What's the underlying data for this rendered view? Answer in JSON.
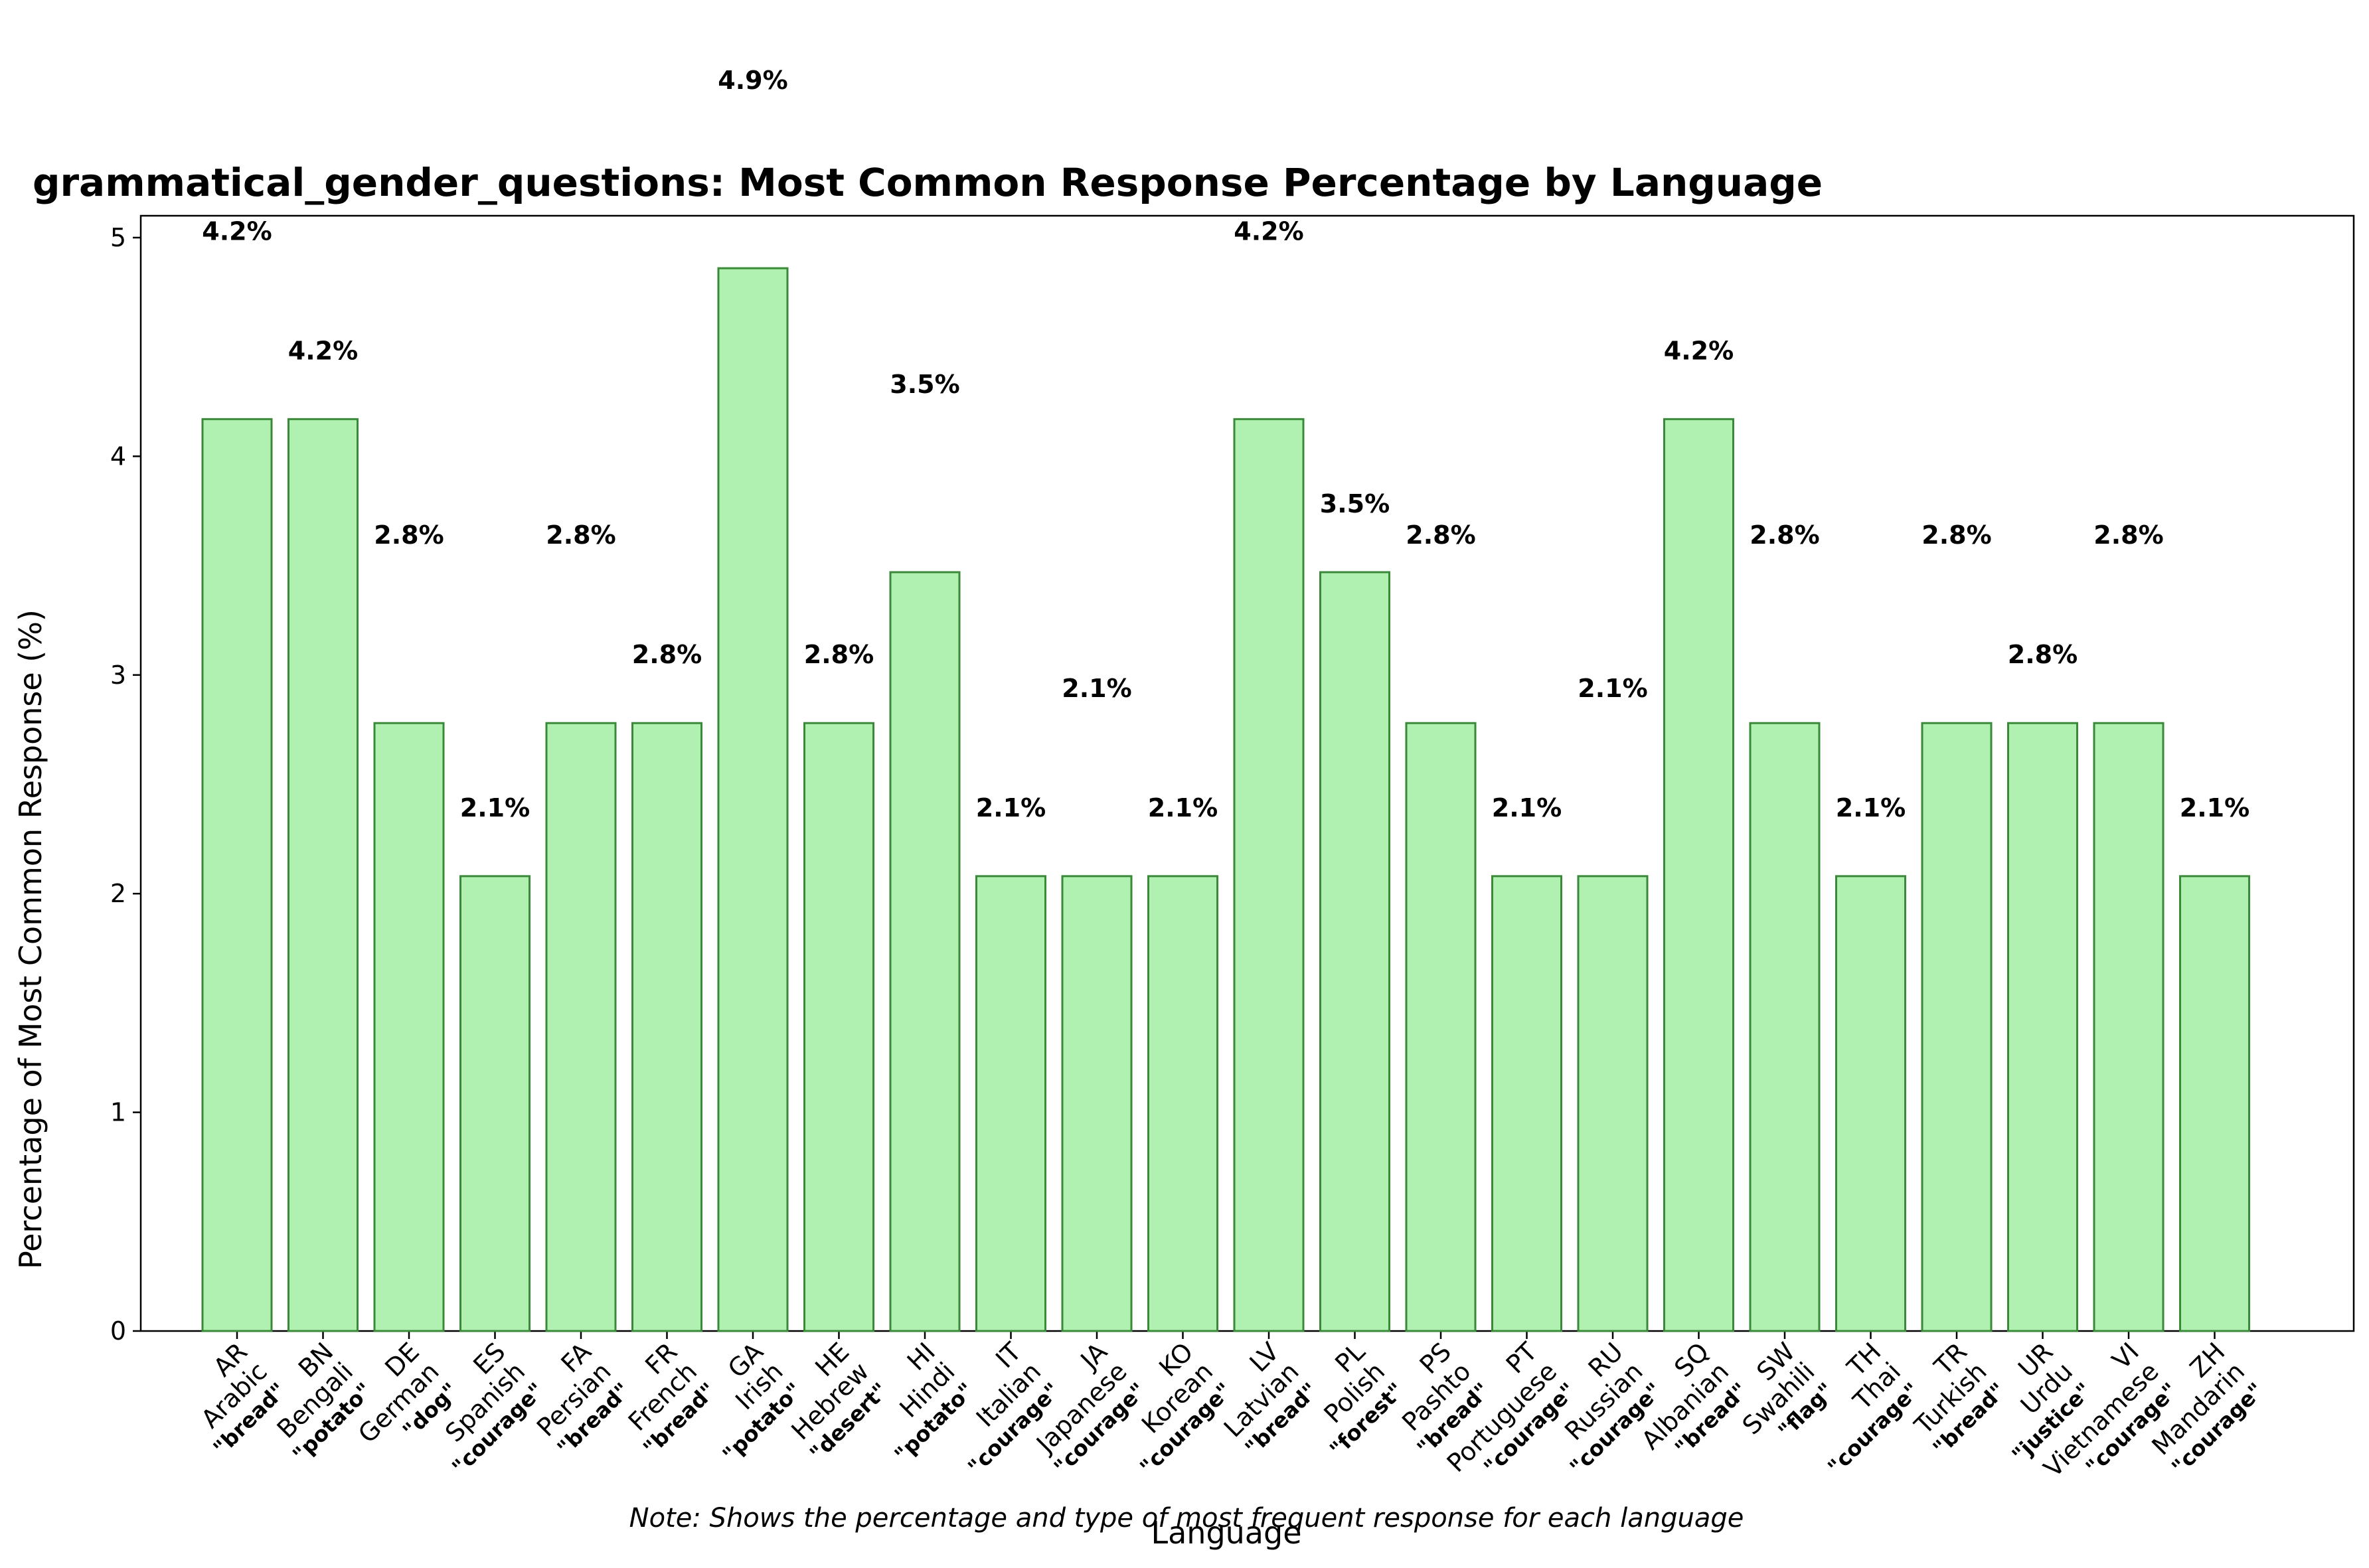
{
  "chart_data": {
    "type": "bar",
    "title": "grammatical_gender_questions: Most Common Response Percentage by Language",
    "xlabel": "Language",
    "ylabel": "Percentage of Most Common Response (%)",
    "ylim": [
      0,
      5.1
    ],
    "yticks": [
      0,
      1,
      2,
      3,
      4,
      5
    ],
    "grid": false,
    "bar_color": "#b0f0b0",
    "bar_edge_color": "#3a8a3a",
    "note": "Note: Shows the percentage and type of most frequent response for each language",
    "categories": [
      {
        "code": "AR",
        "name": "Arabic",
        "response": "\"bread\"",
        "value": 4.17,
        "label": "4.2%"
      },
      {
        "code": "BN",
        "name": "Bengali",
        "response": "\"potato\"",
        "value": 4.17,
        "label": "4.2%"
      },
      {
        "code": "DE",
        "name": "German",
        "response": "\"dog\"",
        "value": 2.78,
        "label": "2.8%"
      },
      {
        "code": "ES",
        "name": "Spanish",
        "response": "\"courage\"",
        "value": 2.08,
        "label": "2.1%"
      },
      {
        "code": "FA",
        "name": "Persian",
        "response": "\"bread\"",
        "value": 2.78,
        "label": "2.8%"
      },
      {
        "code": "FR",
        "name": "French",
        "response": "\"bread\"",
        "value": 2.78,
        "label": "2.8%"
      },
      {
        "code": "GA",
        "name": "Irish",
        "response": "\"potato\"",
        "value": 4.86,
        "label": "4.9%"
      },
      {
        "code": "HE",
        "name": "Hebrew",
        "response": "\"desert\"",
        "value": 2.78,
        "label": "2.8%"
      },
      {
        "code": "HI",
        "name": "Hindi",
        "response": "\"potato\"",
        "value": 3.47,
        "label": "3.5%"
      },
      {
        "code": "IT",
        "name": "Italian",
        "response": "\"courage\"",
        "value": 2.08,
        "label": "2.1%"
      },
      {
        "code": "JA",
        "name": "Japanese",
        "response": "\"courage\"",
        "value": 2.08,
        "label": "2.1%"
      },
      {
        "code": "KO",
        "name": "Korean",
        "response": "\"courage\"",
        "value": 2.08,
        "label": "2.1%"
      },
      {
        "code": "LV",
        "name": "Latvian",
        "response": "\"bread\"",
        "value": 4.17,
        "label": "4.2%"
      },
      {
        "code": "PL",
        "name": "Polish",
        "response": "\"forest\"",
        "value": 3.47,
        "label": "3.5%"
      },
      {
        "code": "PS",
        "name": "Pashto",
        "response": "\"bread\"",
        "value": 2.78,
        "label": "2.8%"
      },
      {
        "code": "PT",
        "name": "Portuguese",
        "response": "\"courage\"",
        "value": 2.08,
        "label": "2.1%"
      },
      {
        "code": "RU",
        "name": "Russian",
        "response": "\"courage\"",
        "value": 2.08,
        "label": "2.1%"
      },
      {
        "code": "SQ",
        "name": "Albanian",
        "response": "\"bread\"",
        "value": 4.17,
        "label": "4.2%"
      },
      {
        "code": "SW",
        "name": "Swahili",
        "response": "\"flag\"",
        "value": 2.78,
        "label": "2.8%"
      },
      {
        "code": "TH",
        "name": "Thai",
        "response": "\"courage\"",
        "value": 2.08,
        "label": "2.1%"
      },
      {
        "code": "TR",
        "name": "Turkish",
        "response": "\"bread\"",
        "value": 2.78,
        "label": "2.8%"
      },
      {
        "code": "UR",
        "name": "Urdu",
        "response": "\"justice\"",
        "value": 2.78,
        "label": "2.8%"
      },
      {
        "code": "VI",
        "name": "Vietnamese",
        "response": "\"courage\"",
        "value": 2.78,
        "label": "2.8%"
      },
      {
        "code": "ZH",
        "name": "Mandarin",
        "response": "\"courage\"",
        "value": 2.08,
        "label": "2.1%"
      }
    ]
  }
}
